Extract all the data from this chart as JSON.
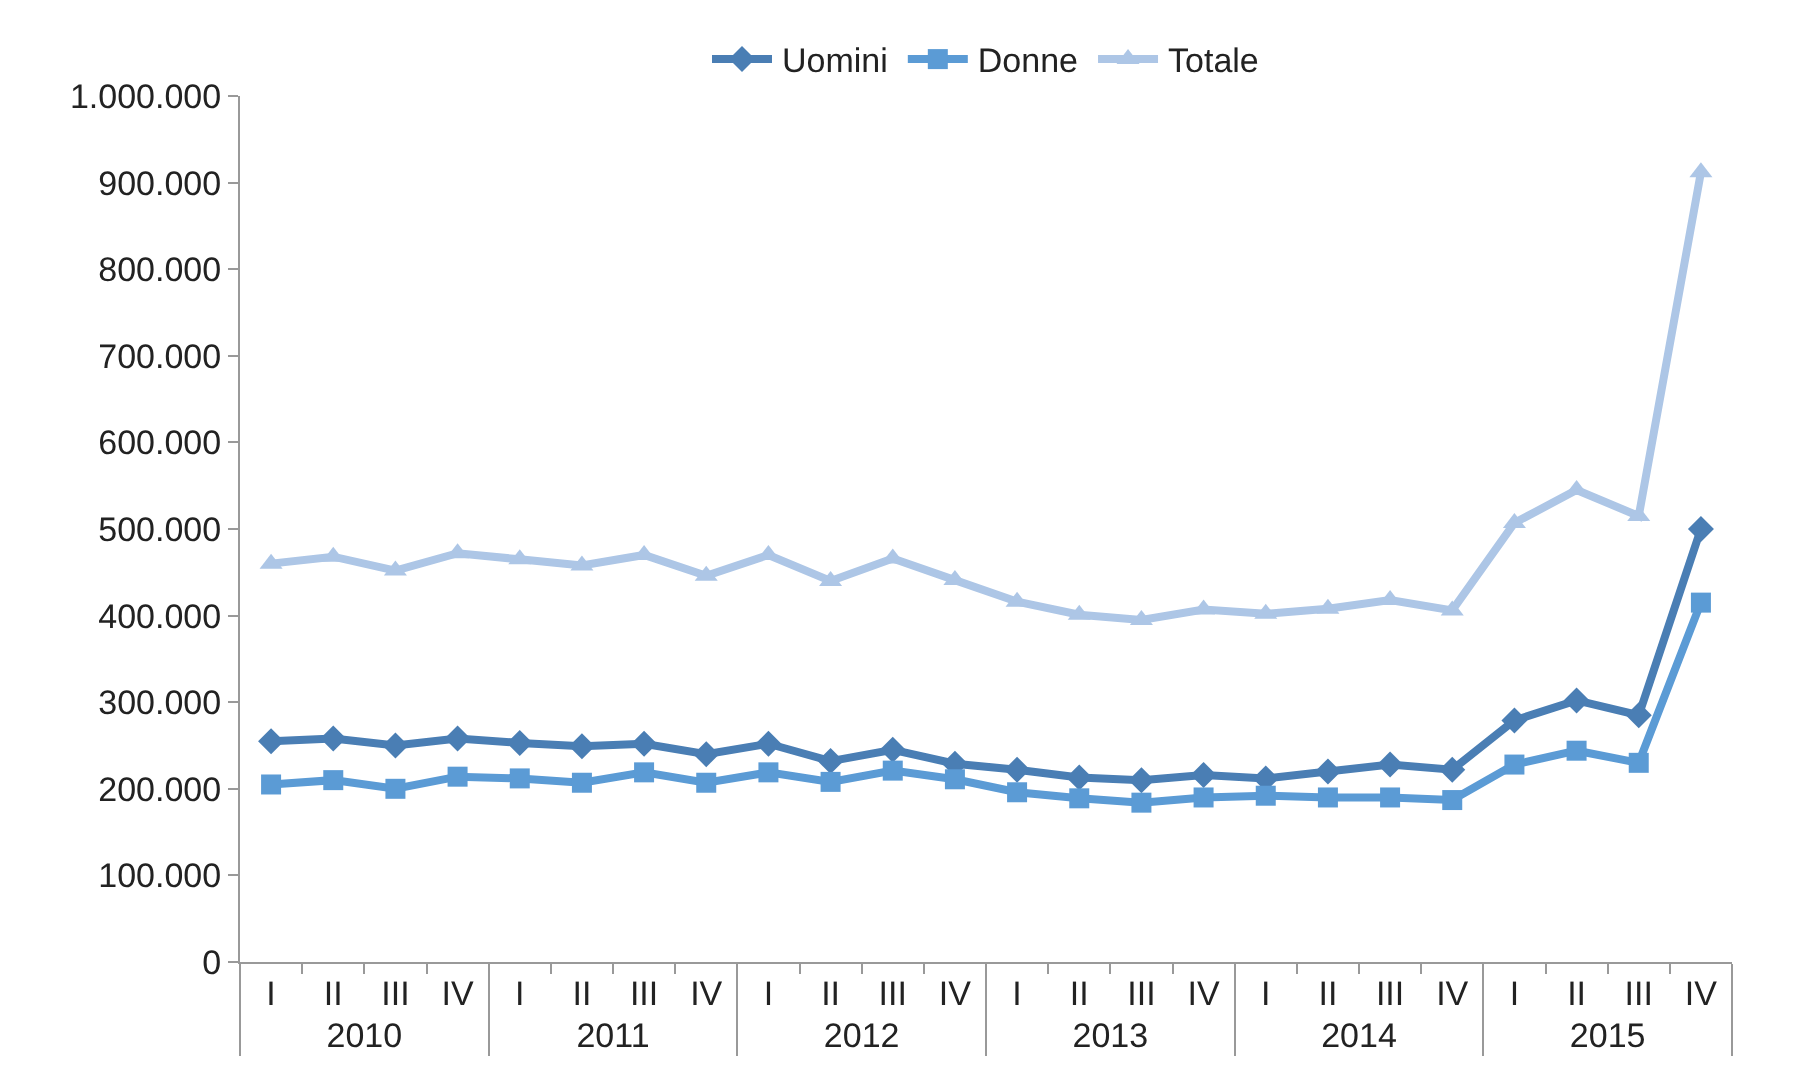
{
  "chart_data": {
    "type": "line",
    "categories": [
      "I",
      "II",
      "III",
      "IV",
      "I",
      "II",
      "III",
      "IV",
      "I",
      "II",
      "III",
      "IV",
      "I",
      "II",
      "III",
      "IV",
      "I",
      "II",
      "III",
      "IV",
      "I",
      "II",
      "III",
      "IV"
    ],
    "annotations": [
      "2010",
      "2011",
      "2012",
      "2013",
      "2014",
      "2015"
    ],
    "series": [
      {
        "name": "Uomini",
        "color": "#4a7eb4",
        "marker": "diamond",
        "values": [
          255000,
          258000,
          250000,
          258000,
          253000,
          249000,
          252000,
          240000,
          252000,
          232000,
          245000,
          229000,
          222000,
          213000,
          210000,
          216000,
          212000,
          220000,
          228000,
          222000,
          279000,
          302000,
          285000,
          500000
        ]
      },
      {
        "name": "Donne",
        "color": "#5b9bd5",
        "marker": "square",
        "values": [
          205000,
          210000,
          200000,
          214000,
          212000,
          207000,
          219000,
          207000,
          219000,
          208000,
          221000,
          211000,
          196000,
          189000,
          184000,
          190000,
          192000,
          190000,
          190000,
          187000,
          228000,
          244000,
          230000,
          415000
        ]
      },
      {
        "name": "Totale",
        "color": "#adc6e6",
        "marker": "triangle",
        "values": [
          460000,
          468000,
          452000,
          472000,
          465000,
          458000,
          470000,
          446000,
          470000,
          440000,
          466000,
          441000,
          416000,
          401000,
          395000,
          407000,
          402000,
          408000,
          418000,
          406000,
          507000,
          545000,
          515000,
          912000
        ]
      }
    ],
    "ylim": [
      0,
      1000000
    ],
    "yticks": [
      0,
      {
        "value": 100000,
        "label": "100.000"
      },
      {
        "value": 200000,
        "label": "200.000"
      },
      {
        "value": 300000,
        "label": "300.000"
      },
      {
        "value": 400000,
        "label": "400.000"
      },
      {
        "value": 500000,
        "label": "500.000"
      },
      {
        "value": 600000,
        "label": "600.000"
      },
      {
        "value": 700000,
        "label": "700.000"
      },
      {
        "value": 800000,
        "label": "800.000"
      },
      {
        "value": 900000,
        "label": "900.000"
      },
      {
        "value": 1000000,
        "label": "1.000.000"
      }
    ],
    "legend": "top",
    "line_style": "solid"
  }
}
